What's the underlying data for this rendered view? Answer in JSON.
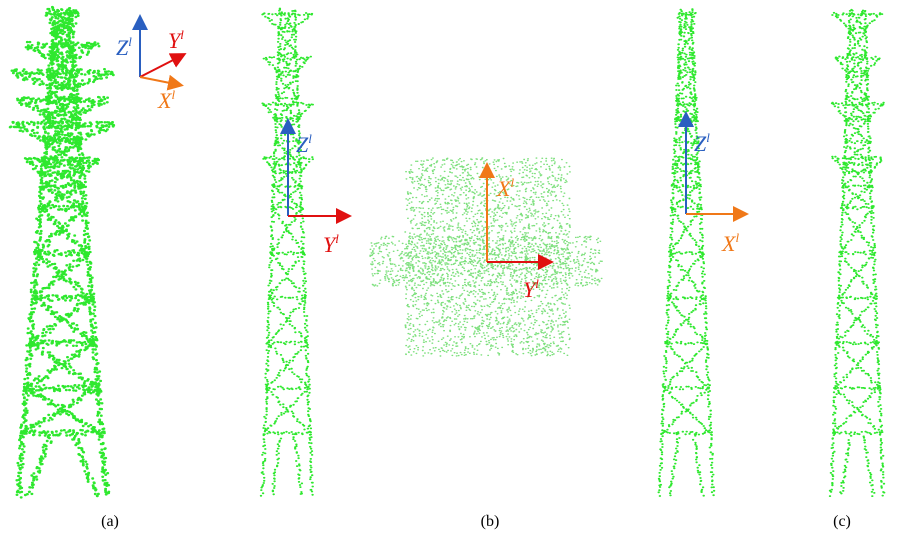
{
  "views": [
    {
      "axes": [
        {
          "base": "Z",
          "sup": "l"
        },
        {
          "base": "Y",
          "sup": "l"
        },
        {
          "base": "X",
          "sup": "l"
        }
      ]
    },
    {
      "axes": [
        {
          "base": "Z",
          "sup": "l"
        },
        {
          "base": "Y",
          "sup": "l"
        }
      ]
    },
    {
      "axes": [
        {
          "base": "X",
          "sup": "l"
        },
        {
          "base": "Y",
          "sup": "l"
        }
      ]
    },
    {
      "axes": [
        {
          "base": "Z",
          "sup": "l"
        },
        {
          "base": "X",
          "sup": "l"
        }
      ]
    }
  ],
  "captions": [
    "(a)",
    "(b)",
    "(c)"
  ]
}
